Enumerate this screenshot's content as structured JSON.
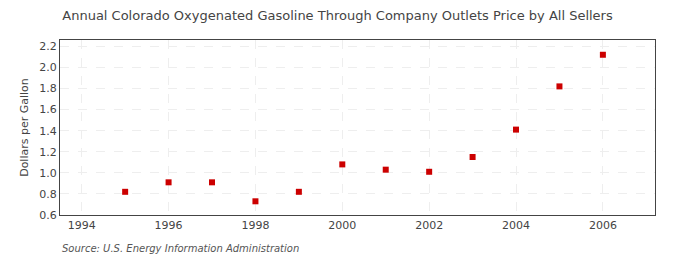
{
  "chart_data": {
    "type": "scatter",
    "title": "Annual Colorado Oxygenated Gasoline Through Company Outlets Price by All Sellers",
    "ylabel": "Dollars per Gallon",
    "source": "Source: U.S. Energy Information Administration",
    "x": [
      1995,
      1996,
      1997,
      1998,
      1999,
      2000,
      2001,
      2002,
      2003,
      2004,
      2005,
      2006
    ],
    "values": [
      0.82,
      0.91,
      0.91,
      0.73,
      0.82,
      1.08,
      1.03,
      1.01,
      1.15,
      1.41,
      1.82,
      2.12
    ],
    "color": "#cc0000",
    "marker": "square",
    "xlim": [
      1993.5,
      2007.2
    ],
    "xticks": [
      1994,
      1996,
      1998,
      2000,
      2002,
      2004,
      2006
    ],
    "ylim": [
      0.6,
      2.26
    ],
    "yticks": [
      0.6,
      0.8,
      {
        "value": 1.0,
        "label": "1.0"
      },
      1.2,
      1.4,
      1.6,
      1.8,
      {
        "value": 2.0,
        "label": "2.0"
      },
      2.2
    ],
    "grid": true
  }
}
